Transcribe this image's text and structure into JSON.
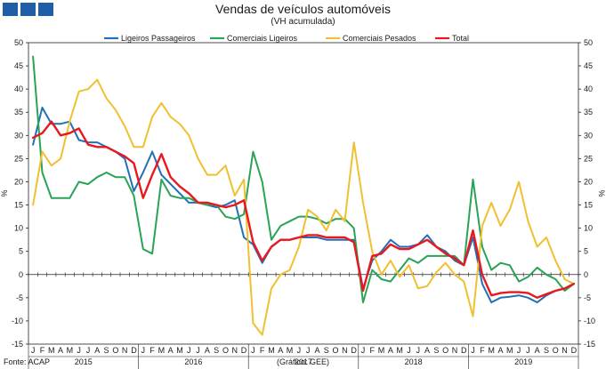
{
  "chart_data": {
    "type": "line",
    "title": "Vendas de veículos automóveis",
    "subtitle": "(VH acumulada)",
    "ylabel_left": "%",
    "ylabel_right": "%",
    "ylim": [
      -15,
      50
    ],
    "yticks": [
      -15,
      -10,
      -5,
      0,
      5,
      10,
      15,
      20,
      25,
      30,
      35,
      40,
      45,
      50
    ],
    "month_labels": [
      "J",
      "F",
      "M",
      "A",
      "M",
      "J",
      "J",
      "A",
      "S",
      "O",
      "N",
      "D"
    ],
    "years": [
      "2015",
      "2016",
      "2017",
      "2018",
      "2019"
    ],
    "legend_position": "top",
    "series": [
      {
        "name": "Ligeiros Passageiros",
        "color": "#2270b5",
        "values": [
          28,
          36,
          32.5,
          32.5,
          33,
          29,
          28.5,
          28.5,
          27.5,
          26.5,
          25,
          18,
          22,
          26.5,
          21.5,
          19.5,
          17.5,
          15.5,
          15.5,
          15,
          14.5,
          15,
          16,
          8,
          6.5,
          2.5,
          6,
          7.5,
          7.5,
          8,
          8,
          8,
          7.5,
          7.5,
          7.5,
          7.5,
          -3,
          3,
          5,
          7.5,
          6,
          6,
          6.5,
          8.5,
          6,
          5,
          3,
          2,
          8,
          -2,
          -6,
          -5,
          -4.8,
          -4.5,
          -5,
          -6,
          -4.5,
          -3.5,
          -3,
          -2
        ]
      },
      {
        "name": "Comerciais Ligeiros",
        "color": "#2aa357",
        "values": [
          47,
          22,
          16.5,
          16.5,
          16.5,
          20,
          19.5,
          21,
          22,
          21,
          21,
          17,
          5.5,
          4.5,
          20.5,
          17,
          16.5,
          16.5,
          15.5,
          15,
          15,
          12.5,
          12,
          13,
          26.5,
          20,
          7.5,
          10.5,
          11.5,
          12.5,
          12.5,
          12,
          11,
          12,
          12,
          10,
          -6,
          1,
          -1,
          -1.5,
          1,
          3.5,
          2.5,
          4,
          4,
          4,
          4,
          2,
          20.5,
          6,
          1,
          2.5,
          2,
          -1.5,
          -0.5,
          1.5,
          0,
          -1,
          -3.5,
          -2
        ]
      },
      {
        "name": "Comerciais Pesados",
        "color": "#f0c030",
        "values": [
          15,
          26.5,
          23.5,
          25,
          33,
          39.5,
          40,
          42,
          38,
          35.5,
          32,
          27.5,
          27.5,
          34,
          37,
          34,
          32.5,
          30,
          25,
          21.5,
          21.5,
          23.5,
          17,
          20.5,
          -10.5,
          -13,
          -3,
          0,
          1,
          6,
          14,
          12.5,
          9.5,
          14,
          11.5,
          28.5,
          15.5,
          5,
          0,
          3,
          -0.5,
          2,
          -3,
          -2.5,
          0.5,
          2.5,
          0,
          -1.5,
          -9,
          10.5,
          15.5,
          10.5,
          14,
          20,
          11.5,
          6,
          8,
          3,
          -1,
          -2
        ]
      },
      {
        "name": "Total",
        "color": "#e8181e",
        "values": [
          29.5,
          30.5,
          33,
          30,
          30.5,
          31.5,
          28,
          27.5,
          27.5,
          26.5,
          25.5,
          24,
          16.5,
          21.5,
          26,
          21,
          19,
          17.5,
          15.5,
          15.5,
          15,
          14.5,
          15,
          16,
          7,
          3,
          6,
          7.5,
          7.5,
          8,
          8.5,
          8.5,
          8,
          8,
          8,
          7,
          -3.5,
          4,
          4.5,
          6.5,
          5.5,
          5.5,
          6.5,
          7.5,
          6,
          4.5,
          3.5,
          2,
          9.5,
          0,
          -4.5,
          -4,
          -3.8,
          -3.8,
          -4,
          -5,
          -4.2,
          -3.5,
          -3,
          -2
        ]
      }
    ]
  },
  "footer": {
    "source": "Fonte: ACAP",
    "credit": "(Gráfico: GEE)"
  }
}
